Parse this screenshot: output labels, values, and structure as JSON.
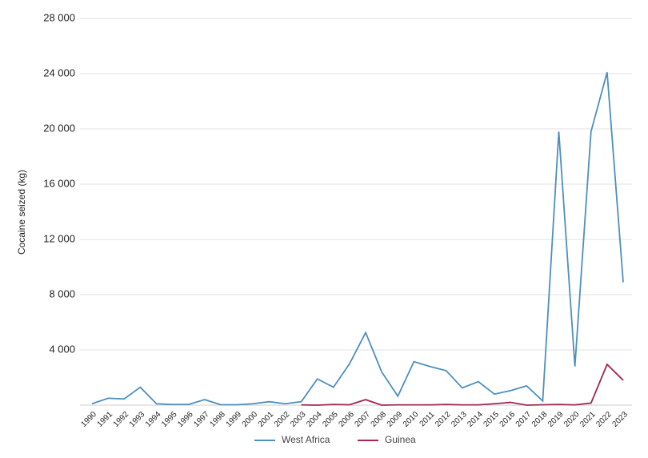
{
  "chart_data": {
    "type": "line",
    "y_label": "Cocaine seized (kg)",
    "x": [
      1990,
      1991,
      1992,
      1993,
      1994,
      1995,
      1996,
      1997,
      1998,
      1999,
      2000,
      2001,
      2002,
      2003,
      2004,
      2005,
      2006,
      2007,
      2008,
      2009,
      2010,
      2011,
      2012,
      2013,
      2014,
      2015,
      2016,
      2017,
      2018,
      2019,
      2020,
      2021,
      2022,
      2023
    ],
    "xlim": [
      1990,
      2023
    ],
    "ylim": [
      0,
      28000
    ],
    "yticks": [
      {
        "value": 4000,
        "label": "4 000"
      },
      {
        "value": 8000,
        "label": "8 000"
      },
      {
        "value": 12000,
        "label": "12 000"
      },
      {
        "value": 16000,
        "label": "16 000"
      },
      {
        "value": 20000,
        "label": "20 000"
      },
      {
        "value": 24000,
        "label": "24 000"
      },
      {
        "value": 28000,
        "label": "28 000"
      }
    ],
    "grid": true,
    "legend": "bottom",
    "series": [
      {
        "name": "West Africa",
        "color": "#4d8fbd",
        "values": [
          100,
          500,
          450,
          1300,
          100,
          50,
          50,
          400,
          30,
          30,
          100,
          250,
          100,
          250,
          1900,
          1300,
          3000,
          5250,
          2400,
          650,
          3150,
          2800,
          2500,
          1250,
          1700,
          800,
          1050,
          1400,
          300,
          19800,
          2800,
          19800,
          24100,
          8900
        ]
      },
      {
        "name": "Guinea",
        "color": "#a0284a",
        "values": [
          null,
          null,
          null,
          null,
          null,
          null,
          null,
          null,
          null,
          null,
          null,
          null,
          null,
          20,
          0,
          50,
          30,
          400,
          0,
          20,
          20,
          20,
          50,
          20,
          20,
          100,
          200,
          0,
          30,
          50,
          20,
          150,
          2950,
          1800
        ]
      }
    ]
  }
}
